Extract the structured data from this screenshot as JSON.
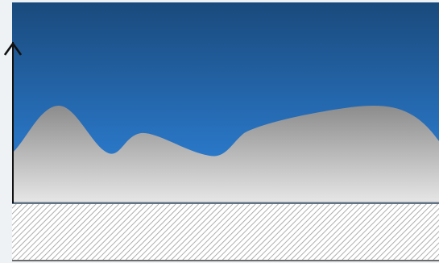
{
  "scene": {
    "sky": {
      "top_color": "#1a4a7c",
      "bottom_color": "#2f86e0"
    },
    "terrain": {
      "top_color": "#8c8c8c",
      "bottom_color": "#e6e6e6"
    },
    "ground": {
      "pattern": "diagonal-hatch",
      "line_color": "#9a9a9a",
      "background_color": "#ffffff",
      "edge_color": "#6c6c6c"
    },
    "axis": {
      "color": "#111111",
      "icon": "up-arrow-icon"
    }
  }
}
